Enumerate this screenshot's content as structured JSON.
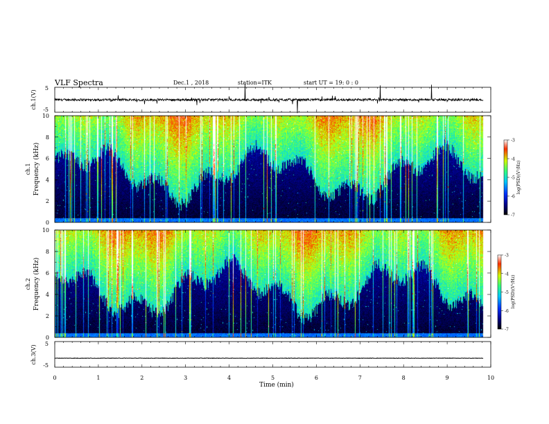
{
  "header": {
    "title": "VLF Spectra",
    "date": "Dec.1 , 2018",
    "station": "station=ITK",
    "start_time": "start  UT =   19: 0  : 0"
  },
  "chart_data": [
    {
      "type": "line",
      "panel": "ch1-waveform",
      "ylabel": "ch.1(V)",
      "ylim": [
        -5,
        5
      ],
      "yticks": [
        "5",
        "-5"
      ],
      "xlim": [
        0,
        10
      ],
      "baseline": 0,
      "color": "#000000"
    },
    {
      "type": "heatmap",
      "panel": "ch1-spectrogram",
      "ylabel_line1": "ch.1",
      "ylabel_line2": "Frequency  (kHz)",
      "ylim": [
        0,
        10
      ],
      "yticks": [
        "0",
        "2",
        "4",
        "6",
        "8",
        "10"
      ],
      "xlim": [
        0,
        10
      ],
      "data_extent_min": 9.83,
      "colorbar": {
        "label": "log(PSD)(V²/Hz)",
        "range": [
          -7,
          -3
        ],
        "ticks": [
          "-3",
          "-4",
          "-5",
          "-6",
          "-7"
        ]
      }
    },
    {
      "type": "heatmap",
      "panel": "ch2-spectrogram",
      "ylabel_line1": "ch.2",
      "ylabel_line2": "Frequency  (kHz)",
      "ylim": [
        0,
        10
      ],
      "yticks": [
        "0",
        "2",
        "4",
        "6",
        "8",
        "10"
      ],
      "xlim": [
        0,
        10
      ],
      "data_extent_min": 9.83,
      "colorbar": {
        "label": "log(PSD)(V²/Hz)",
        "range": [
          -7,
          -3
        ],
        "ticks": [
          "-3",
          "-4",
          "-5",
          "-6",
          "-7"
        ]
      }
    },
    {
      "type": "line",
      "panel": "ch3-waveform",
      "ylabel": "ch.3(V)",
      "ylim": [
        -5,
        5
      ],
      "yticks": [
        "5",
        "-5"
      ],
      "xlim": [
        0,
        10
      ],
      "baseline": -1.5,
      "color": "#000000"
    }
  ],
  "xaxis": {
    "label": "Time  (min)",
    "ticks": [
      "0",
      "1",
      "2",
      "3",
      "4",
      "5",
      "6",
      "7",
      "8",
      "9",
      "10"
    ]
  },
  "colors": {
    "colormap": [
      "#000000",
      "#00008c",
      "#0030ff",
      "#00c8ff",
      "#30ff80",
      "#d0ff00",
      "#ff3000",
      "#ffffff"
    ]
  }
}
